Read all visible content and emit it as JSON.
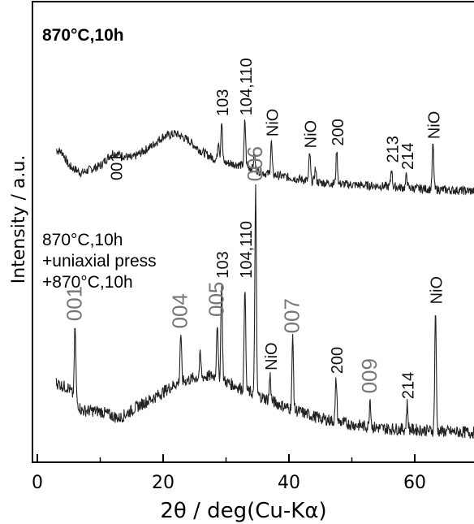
{
  "chart_data": {
    "type": "line",
    "xlabel": "2θ / deg(Cu-Kα)",
    "ylabel": "Intensity / a.u.",
    "xlim": [
      0,
      70
    ],
    "x_ticks": [
      "0",
      "20",
      "40",
      "60"
    ],
    "grid": false,
    "series": [
      {
        "name": "870°C,10h",
        "name_lines": [
          "870°C,10h"
        ],
        "range": [
          3,
          70
        ],
        "baseline_points": [
          [
            3,
            0.62
          ],
          [
            4,
            0.58
          ],
          [
            5,
            0.4
          ],
          [
            7,
            0.3
          ],
          [
            10,
            0.4
          ],
          [
            12,
            0.58
          ],
          [
            15,
            0.5
          ],
          [
            18,
            0.66
          ],
          [
            20,
            0.8
          ],
          [
            22,
            0.84
          ],
          [
            24,
            0.75
          ],
          [
            26,
            0.6
          ],
          [
            28,
            0.5
          ],
          [
            30,
            0.44
          ],
          [
            33,
            0.4
          ],
          [
            36,
            0.3
          ],
          [
            40,
            0.24
          ],
          [
            45,
            0.17
          ],
          [
            50,
            0.14
          ],
          [
            55,
            0.12
          ],
          [
            60,
            0.09
          ],
          [
            65,
            0.07
          ],
          [
            70,
            0.05
          ]
        ],
        "peaks": [
          {
            "x": 28.8,
            "h": 0.28,
            "label": ""
          },
          {
            "x": 29.3,
            "h": 0.55,
            "label": "103"
          },
          {
            "x": 33.0,
            "h": 0.62,
            "label": "104,110"
          },
          {
            "x": 34.5,
            "h": 0.22,
            "label": ""
          },
          {
            "x": 37.2,
            "h": 0.45,
            "label": "NiO"
          },
          {
            "x": 43.3,
            "h": 0.38,
            "label": "NiO"
          },
          {
            "x": 44.2,
            "h": 0.18,
            "label": ""
          },
          {
            "x": 47.6,
            "h": 0.45,
            "label": "200"
          },
          {
            "x": 56.3,
            "h": 0.26,
            "label": "213"
          },
          {
            "x": 58.7,
            "h": 0.18,
            "label": "214"
          },
          {
            "x": 62.9,
            "h": 0.62,
            "label": "NiO"
          }
        ],
        "annotations": [
          {
            "x": 6.0,
            "label": "001",
            "style": "dark"
          }
        ]
      },
      {
        "name": "870°C,10h +uniaxial press +870°C,10h",
        "name_lines": [
          "870°C,10h",
          "+uniaxial press",
          "+870°C,10h"
        ],
        "range": [
          3,
          70
        ],
        "baseline_points": [
          [
            3,
            0.55
          ],
          [
            4,
            0.52
          ],
          [
            5,
            0.5
          ],
          [
            7,
            0.28
          ],
          [
            10,
            0.27
          ],
          [
            13,
            0.2
          ],
          [
            16,
            0.32
          ],
          [
            19,
            0.42
          ],
          [
            22,
            0.54
          ],
          [
            25,
            0.6
          ],
          [
            28,
            0.62
          ],
          [
            30,
            0.56
          ],
          [
            33,
            0.48
          ],
          [
            36,
            0.4
          ],
          [
            40,
            0.3
          ],
          [
            45,
            0.2
          ],
          [
            50,
            0.14
          ],
          [
            55,
            0.1
          ],
          [
            60,
            0.09
          ],
          [
            65,
            0.07
          ],
          [
            70,
            0.06
          ]
        ],
        "peaks": [
          {
            "x": 6.0,
            "h": 0.72,
            "label": "001",
            "style": "gray"
          },
          {
            "x": 22.8,
            "h": 0.48,
            "label": "004",
            "style": "gray"
          },
          {
            "x": 25.9,
            "h": 0.22,
            "label": ""
          },
          {
            "x": 28.6,
            "h": 0.55,
            "label": "005",
            "style": "gray"
          },
          {
            "x": 29.3,
            "h": 0.95,
            "label": "103",
            "style": "dark"
          },
          {
            "x": 33.0,
            "h": 1.05,
            "label": "104,110",
            "style": "dark"
          },
          {
            "x": 34.7,
            "h": 2.05,
            "label": "006",
            "style": "gray"
          },
          {
            "x": 37.0,
            "h": 0.25,
            "label": "NiO",
            "style": "dark"
          },
          {
            "x": 40.6,
            "h": 0.7,
            "label": "007",
            "style": "gray"
          },
          {
            "x": 47.5,
            "h": 0.42,
            "label": "200",
            "style": "dark"
          },
          {
            "x": 52.9,
            "h": 0.28,
            "label": "009",
            "style": "gray"
          },
          {
            "x": 58.8,
            "h": 0.25,
            "label": "214",
            "style": "dark"
          },
          {
            "x": 63.3,
            "h": 1.2,
            "label": "NiO",
            "style": "dark"
          }
        ]
      }
    ]
  }
}
